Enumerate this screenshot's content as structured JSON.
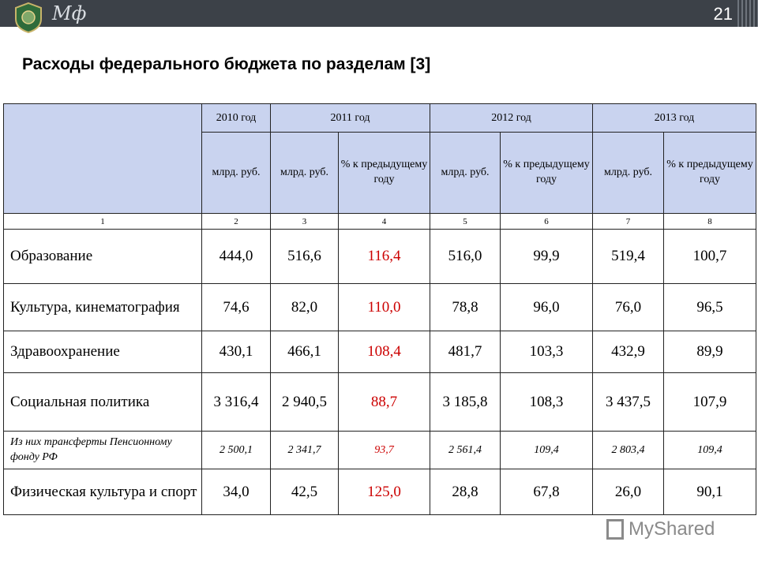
{
  "header": {
    "org": "Мф",
    "page": "21"
  },
  "title": "Расходы федерального бюджета по разделам [3]",
  "table": {
    "years": [
      "2010 год",
      "2011 год",
      "2012 год",
      "2013 год"
    ],
    "sub": {
      "mlrd": "млрд. руб.",
      "pct": "% к предыдущему году"
    },
    "index_row": [
      "1",
      "2",
      "3",
      "4",
      "5",
      "6",
      "7",
      "8"
    ],
    "rows": [
      {
        "label": "Образование",
        "v": [
          "444,0",
          "516,6",
          "116,4",
          "516,0",
          "99,9",
          "519,4",
          "100,7"
        ]
      },
      {
        "label": "Культура, кинематография",
        "v": [
          "74,6",
          "82,0",
          "110,0",
          "78,8",
          "96,0",
          "76,0",
          "96,5"
        ]
      },
      {
        "label": "Здравоохранение",
        "v": [
          "430,1",
          "466,1",
          "108,4",
          "481,7",
          "103,3",
          "432,9",
          "89,9"
        ]
      },
      {
        "label": "Социальная политика",
        "v": [
          "3 316,4",
          "2 940,5",
          "88,7",
          "3 185,8",
          "108,3",
          "3 437,5",
          "107,9"
        ]
      },
      {
        "label": "Из них трансферты Пенсионному фонду РФ",
        "v": [
          "2 500,1",
          "2 341,7",
          "93,7",
          "2 561,4",
          "109,4",
          "2 803,4",
          "109,4"
        ]
      },
      {
        "label": "Физическая культура и спорт",
        "v": [
          "34,0",
          "42,5",
          "125,0",
          "28,8",
          "67,8",
          "26,0",
          "90,1"
        ]
      }
    ]
  },
  "watermark": "MyShared",
  "colors": {
    "header_bg": "#c9d3ef",
    "topbar": "#3c4148",
    "pct_2011": "#cc0000"
  }
}
